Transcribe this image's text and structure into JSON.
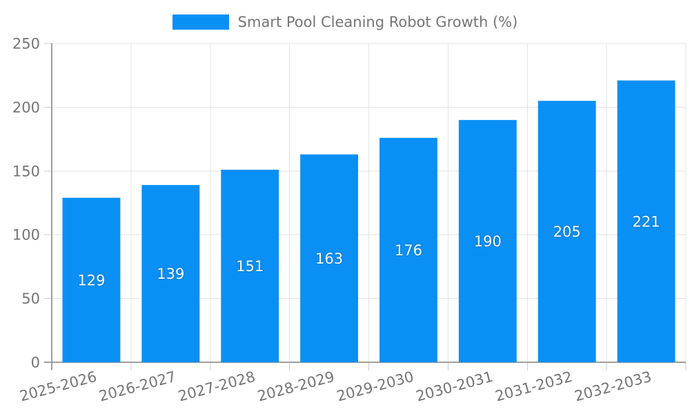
{
  "legend": {
    "label": "Smart Pool Cleaning Robot Growth (%)"
  },
  "colors": {
    "bar": "#0a90f5",
    "grid": "#e3e3e3",
    "tick": "#cccccc",
    "axis": "#9e9e9e",
    "text": "#757575",
    "value_label": "#ffffff",
    "background": "#ffffff"
  },
  "chart_data": {
    "type": "bar",
    "title": "Smart Pool Cleaning Robot Growth (%)",
    "categories": [
      "2025-2026",
      "2026-2027",
      "2027-2028",
      "2028-2029",
      "2029-2030",
      "2030-2031",
      "2031-2032",
      "2032-2033"
    ],
    "values": [
      129,
      139,
      151,
      163,
      176,
      190,
      205,
      221
    ],
    "xlabel": "",
    "ylabel": "",
    "ylim": [
      0,
      250
    ],
    "yticks": [
      0,
      50,
      100,
      150,
      200,
      250
    ],
    "grid": true,
    "legend_position": "top-center",
    "value_labels": "inside-center",
    "x_label_rotation": -15
  }
}
